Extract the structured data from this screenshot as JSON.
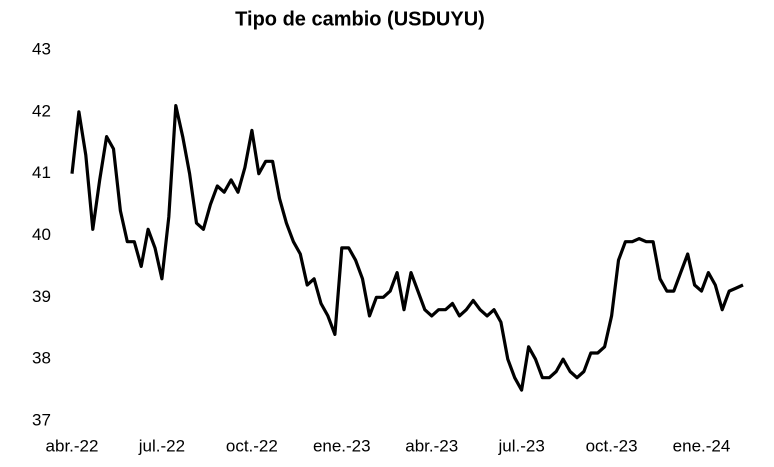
{
  "chart_data": {
    "type": "line",
    "title": "Tipo de cambio (USDUYU)",
    "categories": [
      "abr.-22",
      null,
      null,
      null,
      null,
      null,
      null,
      null,
      null,
      null,
      null,
      null,
      null,
      "jul.-22",
      null,
      null,
      null,
      null,
      null,
      null,
      null,
      null,
      null,
      null,
      null,
      null,
      "oct.-22",
      null,
      null,
      null,
      null,
      null,
      null,
      null,
      null,
      null,
      null,
      null,
      null,
      "ene.-23",
      null,
      null,
      null,
      null,
      null,
      null,
      null,
      null,
      null,
      null,
      null,
      null,
      "abr.-23",
      null,
      null,
      null,
      null,
      null,
      null,
      null,
      null,
      null,
      null,
      null,
      null,
      "jul.-23",
      null,
      null,
      null,
      null,
      null,
      null,
      null,
      null,
      null,
      null,
      null,
      null,
      "oct.-23",
      null,
      null,
      null,
      null,
      null,
      null,
      null,
      null,
      null,
      null,
      null,
      null,
      "ene.-24",
      null,
      null,
      null,
      null,
      null,
      null
    ],
    "series": [
      {
        "name": "USDUYU",
        "color": "#000000",
        "values": [
          41.0,
          42.0,
          41.3,
          40.1,
          40.9,
          41.6,
          41.4,
          40.4,
          39.9,
          39.9,
          39.5,
          40.1,
          39.8,
          39.3,
          40.3,
          42.1,
          41.6,
          41.0,
          40.2,
          40.1,
          40.5,
          40.8,
          40.7,
          40.9,
          40.7,
          41.1,
          41.7,
          41.0,
          41.2,
          41.2,
          40.6,
          40.2,
          39.9,
          39.7,
          39.2,
          39.3,
          38.9,
          38.7,
          38.4,
          39.8,
          39.8,
          39.6,
          39.3,
          38.7,
          39.0,
          39.0,
          39.1,
          39.4,
          38.8,
          39.4,
          39.1,
          38.8,
          38.7,
          38.8,
          38.8,
          38.9,
          38.7,
          38.8,
          38.95,
          38.8,
          38.7,
          38.8,
          38.6,
          38.0,
          37.7,
          37.5,
          38.2,
          38.0,
          37.7,
          37.7,
          37.8,
          38.0,
          37.8,
          37.7,
          37.8,
          38.1,
          38.1,
          38.2,
          38.7,
          39.6,
          39.9,
          39.9,
          39.95,
          39.9,
          39.9,
          39.3,
          39.1,
          39.1,
          39.4,
          39.7,
          39.2,
          39.1,
          39.4,
          39.2,
          38.8,
          39.1,
          39.15,
          39.2
        ]
      }
    ],
    "ylim": [
      37,
      43
    ],
    "yticks": [
      37,
      38,
      39,
      40,
      41,
      42,
      43
    ],
    "grid": false
  }
}
